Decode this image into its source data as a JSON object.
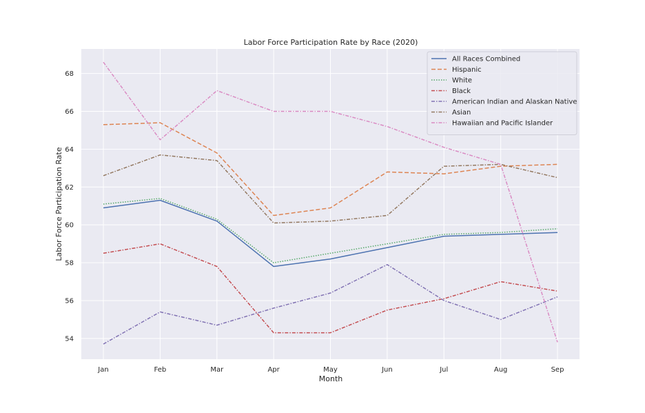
{
  "chart_data": {
    "type": "line",
    "title": "Labor Force Participation Rate by Race (2020)",
    "xlabel": "Month",
    "ylabel": "Labor Force Participation Rate",
    "categories": [
      "Jan",
      "Feb",
      "Mar",
      "Apr",
      "May",
      "Jun",
      "Jul",
      "Aug",
      "Sep"
    ],
    "y_ticks": [
      54,
      56,
      58,
      60,
      62,
      64,
      66,
      68
    ],
    "ylim": [
      52.9,
      69.3
    ],
    "grid": true,
    "legend_position": "top-right",
    "background_color": "#eaeaf2",
    "series": [
      {
        "name": "All Races Combined",
        "color": "#4c72b0",
        "dash": "solid",
        "values": [
          60.9,
          61.3,
          60.2,
          57.8,
          58.2,
          58.8,
          59.4,
          59.5,
          59.6
        ]
      },
      {
        "name": "Hispanic",
        "color": "#dd8452",
        "dash": "dashed",
        "values": [
          65.3,
          65.4,
          63.8,
          60.5,
          60.9,
          62.8,
          62.7,
          63.1,
          63.2
        ]
      },
      {
        "name": "White",
        "color": "#55a868",
        "dash": "dotted",
        "values": [
          61.1,
          61.4,
          60.3,
          58.0,
          58.5,
          59.0,
          59.5,
          59.6,
          59.8
        ]
      },
      {
        "name": "Black",
        "color": "#c44e52",
        "dash": "dashdot",
        "values": [
          58.5,
          59.0,
          57.8,
          54.3,
          54.3,
          55.5,
          56.1,
          57.0,
          56.5
        ]
      },
      {
        "name": "American Indian and Alaskan Native",
        "color": "#8172b3",
        "dash": "dashdot",
        "values": [
          53.7,
          55.4,
          54.7,
          55.6,
          56.4,
          57.9,
          56.0,
          55.0,
          56.2
        ]
      },
      {
        "name": "Asian",
        "color": "#937860",
        "dash": "dashdot",
        "values": [
          62.6,
          63.7,
          63.4,
          60.1,
          60.2,
          60.5,
          63.1,
          63.2,
          62.5
        ]
      },
      {
        "name": "Hawaiian and Pacific Islander",
        "color": "#da8bc3",
        "dash": "dashdot",
        "values": [
          68.6,
          64.5,
          67.1,
          66.0,
          66.0,
          65.2,
          64.1,
          63.2,
          53.8
        ]
      }
    ]
  }
}
